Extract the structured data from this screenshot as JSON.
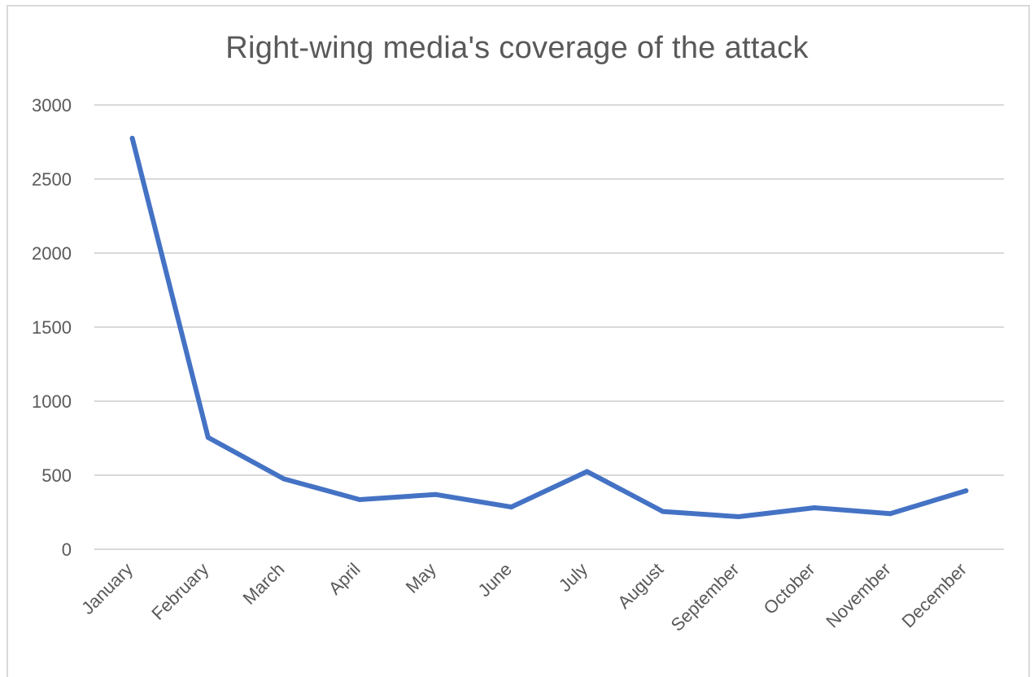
{
  "chart_data": {
    "type": "line",
    "title": "Right-wing media's coverage of the attack",
    "xlabel": "",
    "ylabel": "",
    "categories": [
      "January",
      "February",
      "March",
      "April",
      "May",
      "June",
      "July",
      "August",
      "September",
      "October",
      "November",
      "December"
    ],
    "series": [
      {
        "values": [
          2775,
          755,
          475,
          335,
          370,
          285,
          525,
          255,
          220,
          280,
          240,
          395
        ],
        "color": "#4472c4"
      }
    ],
    "ylim": [
      0,
      3000
    ],
    "yticks": [
      0,
      500,
      1000,
      1500,
      2000,
      2500,
      3000
    ],
    "grid": true,
    "legend": "none"
  }
}
